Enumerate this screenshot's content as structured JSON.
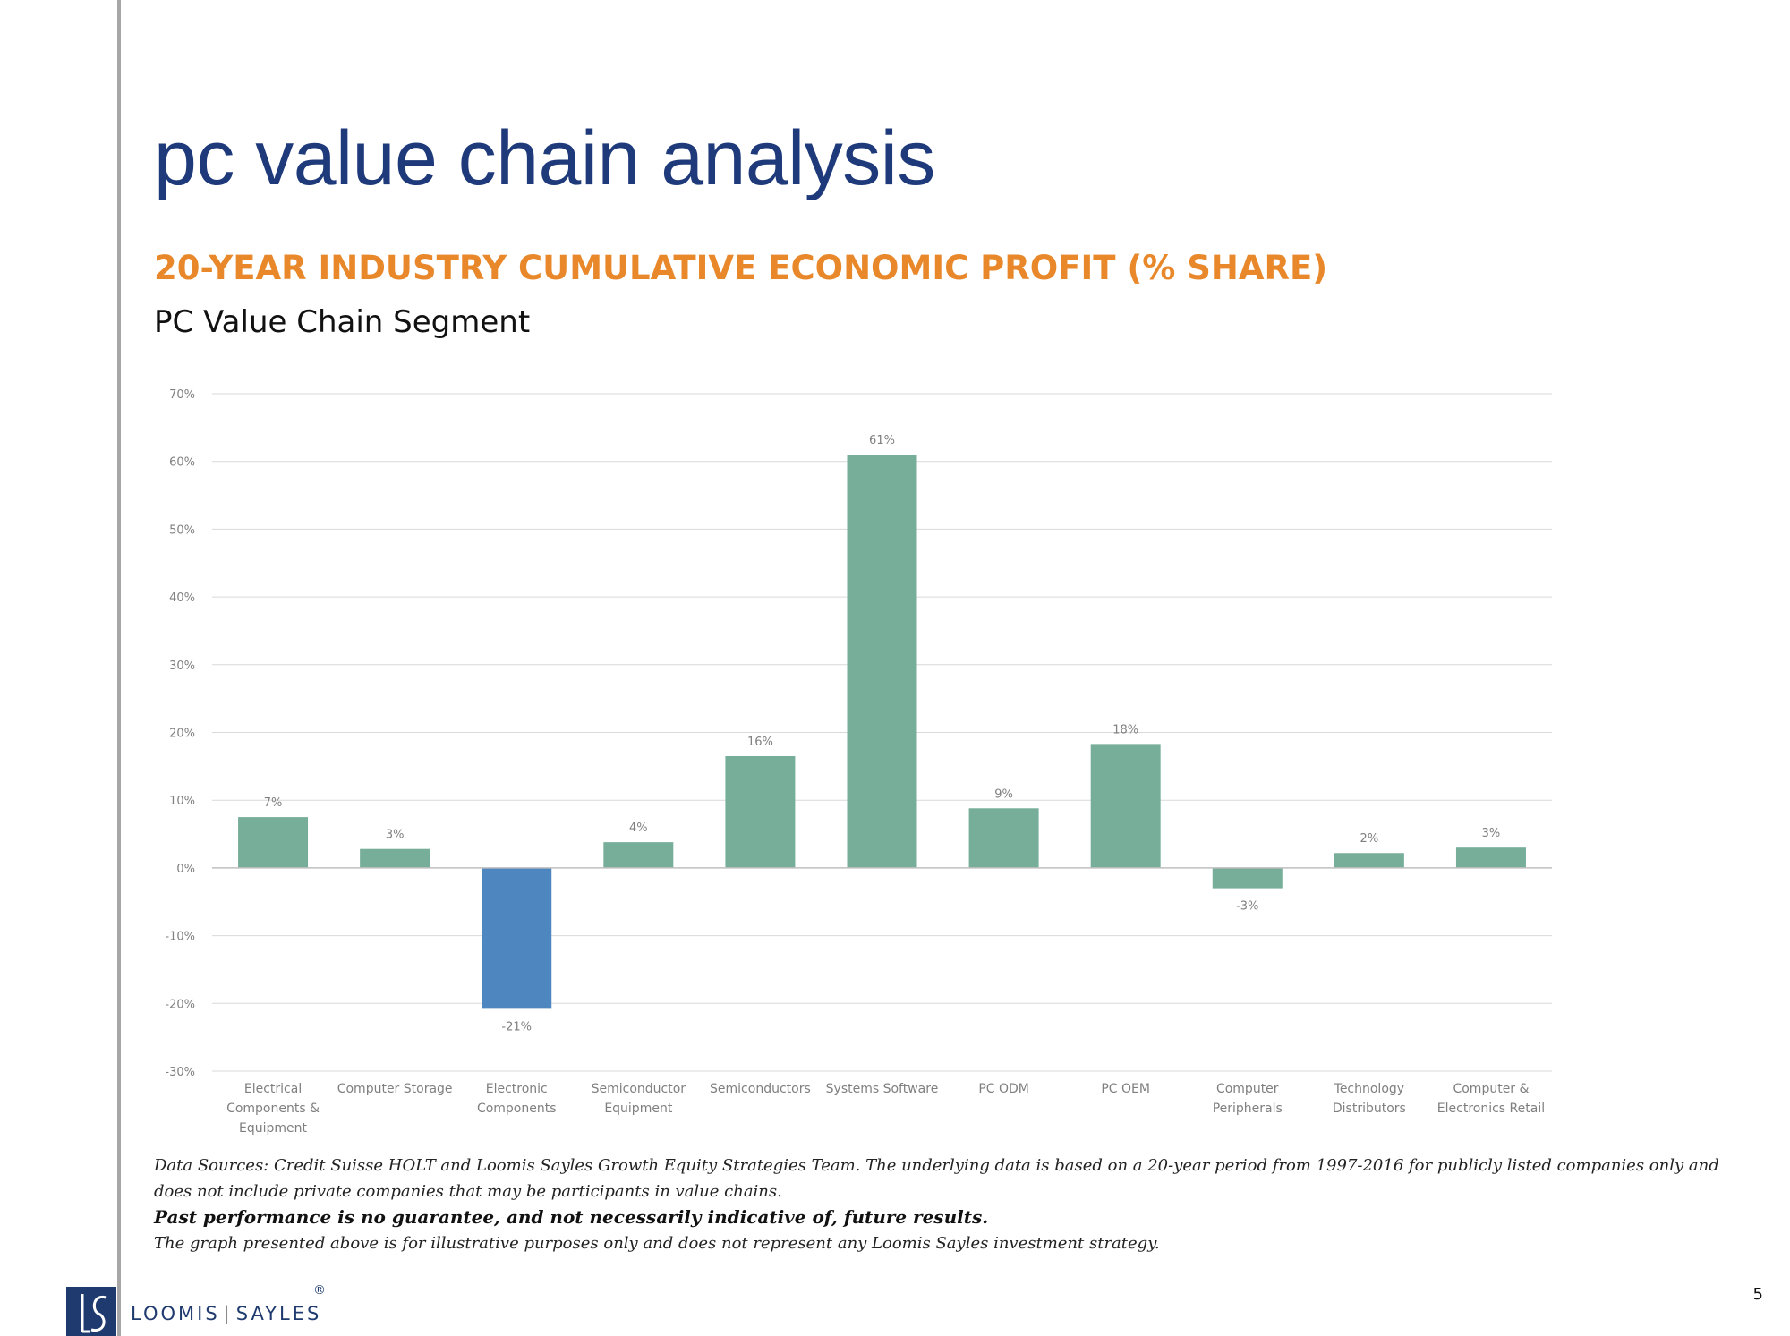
{
  "slide": {
    "title": "pc value chain analysis",
    "subtitle": "20-YEAR INDUSTRY CUMULATIVE ECONOMIC PROFIT (% SHARE)",
    "segment_label": "PC Value Chain Segment",
    "page_number": "5"
  },
  "notes": {
    "sources": "Data Sources: Credit Suisse HOLT and Loomis Sayles Growth Equity Strategies Team. The underlying data is based on a 20-year period from 1997-2016 for publicly listed companies only and does not include private companies that may be participants in value chains.",
    "disclaimer": "Past performance is no guarantee, and not necessarily indicative of, future results.",
    "illustrative": "The graph presented above is for illustrative purposes only and does not represent any Loomis Sayles investment strategy."
  },
  "logo": {
    "mark": "LS",
    "name_left": "LOOMIS",
    "name_right": "SAYLES",
    "registered": "®"
  },
  "colors": {
    "title": "#1f3a7a",
    "subtitle": "#e8882a",
    "bar_positive": "#76ae9a",
    "bar_negative": "#4e86bf",
    "grid": "#d9d9d9",
    "axis_text": "#7f7f7f"
  },
  "chart_data": {
    "type": "bar",
    "title": "",
    "xlabel": "",
    "ylabel": "",
    "ylim": [
      -30,
      70
    ],
    "yticks": [
      -30,
      -20,
      -10,
      0,
      10,
      20,
      30,
      40,
      50,
      60,
      70
    ],
    "ytick_labels": [
      "-30%",
      "-20%",
      "-10%",
      "0%",
      "10%",
      "20%",
      "30%",
      "40%",
      "50%",
      "60%",
      "70%"
    ],
    "grid": true,
    "legend": "none",
    "categories": [
      "Electrical Components & Equipment",
      "Computer Storage",
      "Electronic Components",
      "Semiconductor Equipment",
      "Semiconductors",
      "Systems Software",
      "PC ODM",
      "PC OEM",
      "Computer Peripherals",
      "Technology Distributors",
      "Computer & Electronics Retail"
    ],
    "category_lines": [
      [
        "Electrical",
        "Components &",
        "Equipment"
      ],
      [
        "Computer Storage"
      ],
      [
        "Electronic",
        "Components"
      ],
      [
        "Semiconductor",
        "Equipment"
      ],
      [
        "Semiconductors"
      ],
      [
        "Systems Software"
      ],
      [
        "PC ODM"
      ],
      [
        "PC OEM"
      ],
      [
        "Computer",
        "Peripherals"
      ],
      [
        "Technology",
        "Distributors"
      ],
      [
        "Computer &",
        "Electronics Retail"
      ]
    ],
    "values": [
      7.5,
      2.8,
      -20.8,
      3.8,
      16.5,
      61.0,
      8.8,
      18.3,
      -3.0,
      2.2,
      3.0
    ],
    "data_labels": [
      "7%",
      "3%",
      "-21%",
      "4%",
      "16%",
      "61%",
      "9%",
      "18%",
      "-3%",
      "2%",
      "3%"
    ],
    "highlight_index": 2
  }
}
